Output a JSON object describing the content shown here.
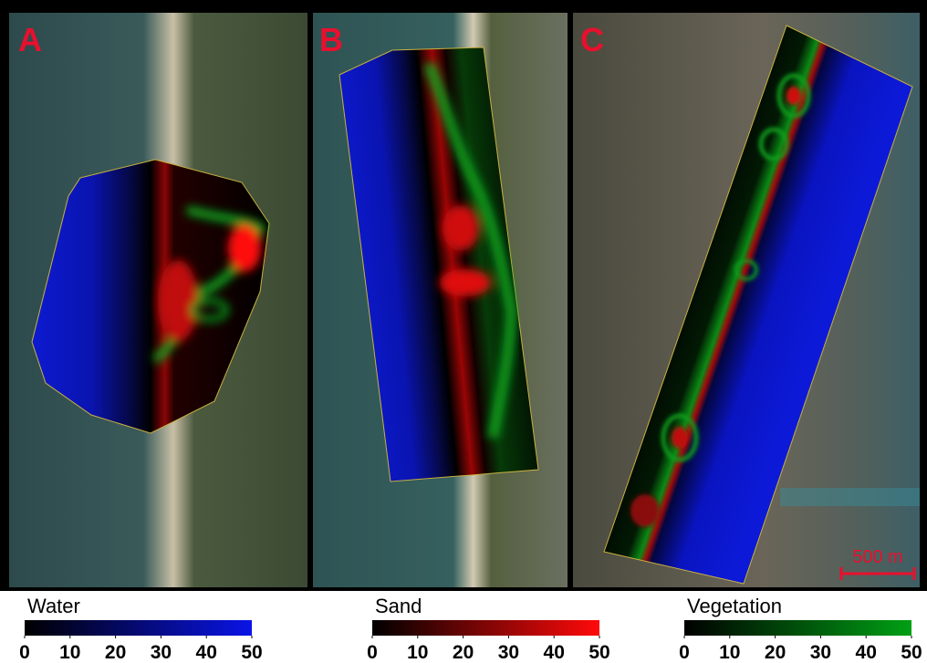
{
  "panels": [
    {
      "label": "A"
    },
    {
      "label": "B"
    },
    {
      "label": "C"
    }
  ],
  "scale_bar": {
    "label": "500 m"
  },
  "colorbars": [
    {
      "title": "Water",
      "color": "#0a14e6",
      "lim": [
        0,
        50
      ],
      "ticks": [
        0,
        10,
        20,
        30,
        40,
        50
      ]
    },
    {
      "title": "Sand",
      "color": "#ff0a0a",
      "lim": [
        0,
        50
      ],
      "ticks": [
        0,
        10,
        20,
        30,
        40,
        50
      ]
    },
    {
      "title": "Vegetation",
      "color": "#00a014",
      "lim": [
        0,
        50
      ],
      "ticks": [
        0,
        10,
        20,
        30,
        40,
        50
      ]
    }
  ]
}
